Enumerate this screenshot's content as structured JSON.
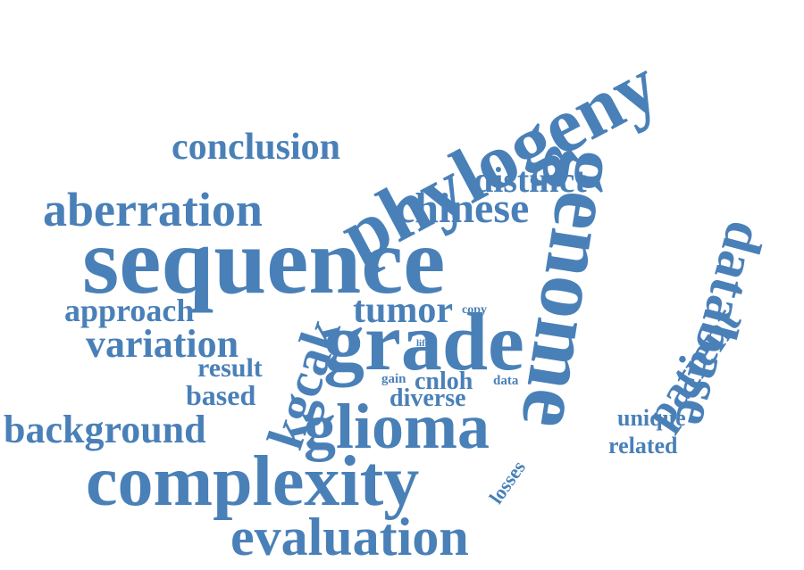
{
  "word_color": "#4a80b8",
  "words": [
    {
      "text": "phylogeny"
    },
    {
      "text": "sequence"
    },
    {
      "text": "genome"
    },
    {
      "text": "grade"
    },
    {
      "text": "complexity"
    },
    {
      "text": "glioma"
    },
    {
      "text": "evaluation"
    },
    {
      "text": "database"
    },
    {
      "text": "aberration"
    },
    {
      "text": "chinese"
    },
    {
      "text": "conclusion"
    },
    {
      "text": "distinct"
    },
    {
      "text": "patient"
    },
    {
      "text": "background"
    },
    {
      "text": "variation"
    },
    {
      "text": "approach"
    },
    {
      "text": "tumor"
    },
    {
      "text": "kgcak"
    },
    {
      "text": "result"
    },
    {
      "text": "based"
    },
    {
      "text": "cnloh"
    },
    {
      "text": "diverse"
    },
    {
      "text": "unique"
    },
    {
      "text": "related"
    },
    {
      "text": "losses"
    },
    {
      "text": "gain"
    },
    {
      "text": "data"
    },
    {
      "text": "copy"
    },
    {
      "text": "life"
    }
  ]
}
